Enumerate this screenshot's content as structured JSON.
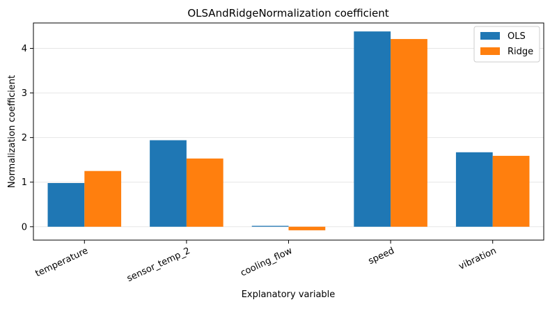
{
  "chart_data": {
    "type": "bar",
    "title": "OLSAndRidgeNormalization coefficient",
    "xlabel": "Explanatory variable",
    "ylabel": "Normalization coefficient",
    "categories": [
      "temperature",
      "sensor_temp_2",
      "cooling_flow",
      "speed",
      "vibration"
    ],
    "series": [
      {
        "name": "OLS",
        "color": "#1f77b4",
        "values": [
          0.98,
          1.94,
          0.02,
          4.38,
          1.67
        ]
      },
      {
        "name": "Ridge",
        "color": "#ff7f0e",
        "values": [
          1.25,
          1.53,
          -0.08,
          4.21,
          1.59
        ]
      }
    ],
    "ylim": [
      -0.3,
      4.57
    ],
    "yticks": [
      0,
      1,
      2,
      3,
      4
    ],
    "grid": "y",
    "legend_position": "top-right"
  }
}
